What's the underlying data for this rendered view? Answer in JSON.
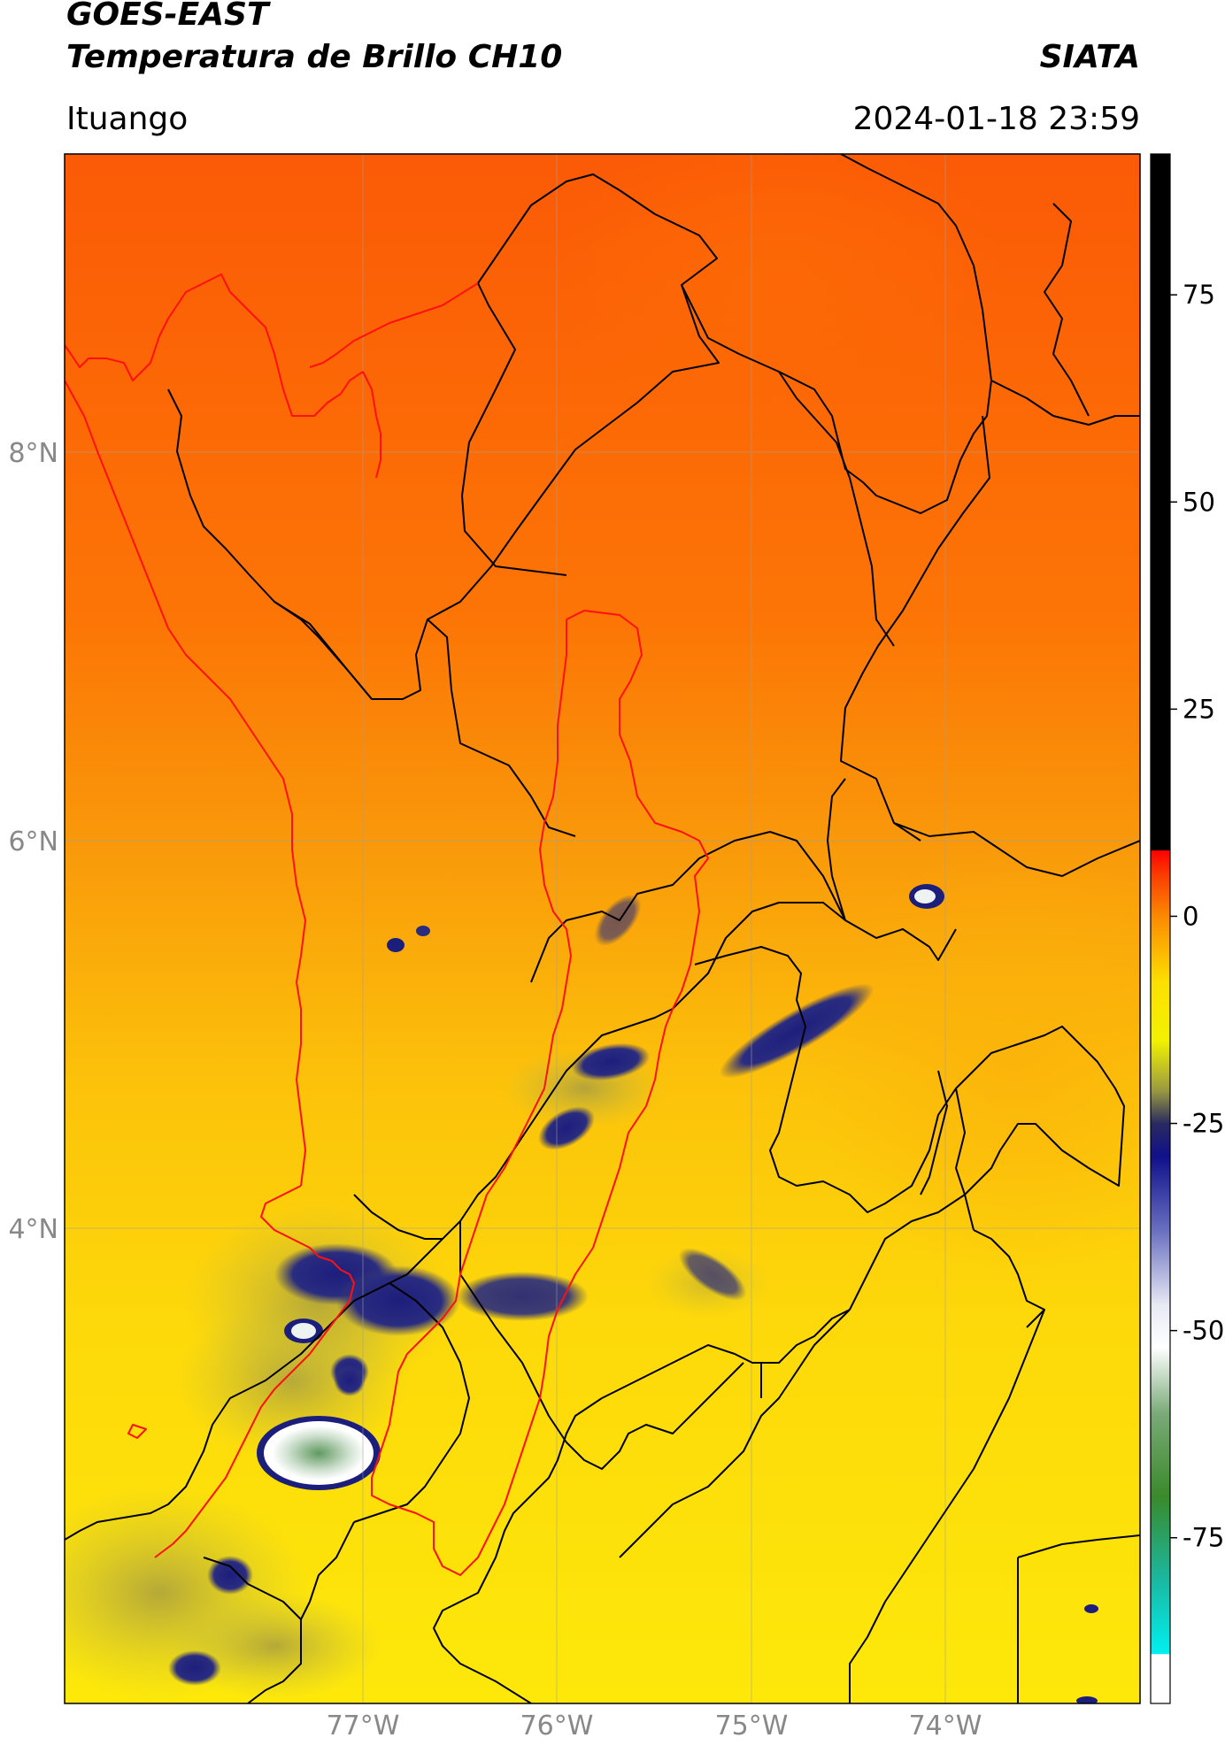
{
  "header": {
    "satellite": "GOES-EAST",
    "product": "Temperatura de Brillo CH10",
    "institution": "SIATA",
    "region": "Ituango",
    "datetime": "2024-01-18 23:59"
  },
  "map": {
    "lat_ticks": [
      "8°N",
      "6°N",
      "4°N"
    ],
    "lon_ticks": [
      "77°W",
      "76°W",
      "75°W",
      "74°W"
    ],
    "extent": {
      "lon_min": -78.55,
      "lon_max": -73.0,
      "lat_min": 2.95,
      "lat_max": 9.55
    },
    "colors": {
      "warm_north": "#fb5a06",
      "mid": "#f99a0a",
      "south": "#fde80a",
      "cold_cloud": "#1c1e7c",
      "very_cold": "#eef2f0",
      "border_department": "#000000",
      "border_basin": "#ff1010"
    }
  },
  "colorbar": {
    "ticks": [
      "75",
      "50",
      "25",
      "0",
      "-25",
      "-50",
      "-75"
    ],
    "range": [
      -95,
      92
    ],
    "stops": [
      {
        "v": 92,
        "c": "#000000"
      },
      {
        "v": 8,
        "c": "#000000"
      },
      {
        "v": 7.9,
        "c": "#ff0000"
      },
      {
        "v": 5,
        "c": "#fa3c00"
      },
      {
        "v": 0,
        "c": "#fb8a00"
      },
      {
        "v": -8,
        "c": "#fde000"
      },
      {
        "v": -15,
        "c": "#f2f200"
      },
      {
        "v": -21,
        "c": "#9a9a40"
      },
      {
        "v": -25,
        "c": "#2a2a60"
      },
      {
        "v": -29,
        "c": "#10108a"
      },
      {
        "v": -38,
        "c": "#6a70c0"
      },
      {
        "v": -47,
        "c": "#e8eaf4"
      },
      {
        "v": -52,
        "c": "#ffffff"
      },
      {
        "v": -60,
        "c": "#7aaa78"
      },
      {
        "v": -70,
        "c": "#3a8a2a"
      },
      {
        "v": -80,
        "c": "#1ab8a0"
      },
      {
        "v": -89,
        "c": "#00f0f0"
      },
      {
        "v": -89.1,
        "c": "#ffffff"
      },
      {
        "v": -95,
        "c": "#ffffff"
      }
    ]
  }
}
